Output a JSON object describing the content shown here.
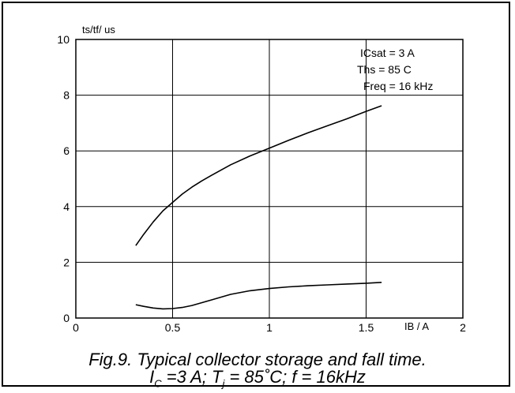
{
  "chart_data": {
    "type": "line",
    "ylabel": "ts/tf/ us",
    "xlabel": "IB / A",
    "xlim": [
      0,
      2
    ],
    "ylim": [
      0,
      10
    ],
    "xticks": [
      0,
      0.5,
      1,
      1.5,
      2
    ],
    "xtick_labels": [
      "0",
      "0.5",
      "1",
      "1.5",
      "2"
    ],
    "yticks": [
      0,
      2,
      4,
      6,
      8,
      10
    ],
    "ytick_labels": [
      "0",
      "2",
      "4",
      "6",
      "8",
      "10"
    ],
    "grid": true,
    "annotations": [
      "ICsat = 3 A",
      "Ths = 85 C",
      "Freq = 16 kHz"
    ],
    "series": [
      {
        "x": [
          0.31,
          0.35,
          0.4,
          0.45,
          0.5,
          0.55,
          0.6,
          0.65,
          0.7,
          0.8,
          0.9,
          1.0,
          1.1,
          1.2,
          1.3,
          1.4,
          1.5,
          1.58
        ],
        "values": [
          2.6,
          3.0,
          3.45,
          3.85,
          4.15,
          4.45,
          4.7,
          4.92,
          5.12,
          5.5,
          5.82,
          6.1,
          6.38,
          6.65,
          6.9,
          7.15,
          7.42,
          7.62
        ]
      },
      {
        "x": [
          0.31,
          0.35,
          0.4,
          0.45,
          0.5,
          0.55,
          0.6,
          0.65,
          0.7,
          0.8,
          0.9,
          1.0,
          1.1,
          1.2,
          1.3,
          1.4,
          1.5,
          1.58
        ],
        "values": [
          0.48,
          0.42,
          0.36,
          0.33,
          0.34,
          0.38,
          0.45,
          0.55,
          0.65,
          0.85,
          0.98,
          1.06,
          1.12,
          1.16,
          1.19,
          1.22,
          1.25,
          1.28
        ]
      }
    ]
  },
  "caption": {
    "line1": "Fig.9.   Typical collector storage and fall time."
  }
}
